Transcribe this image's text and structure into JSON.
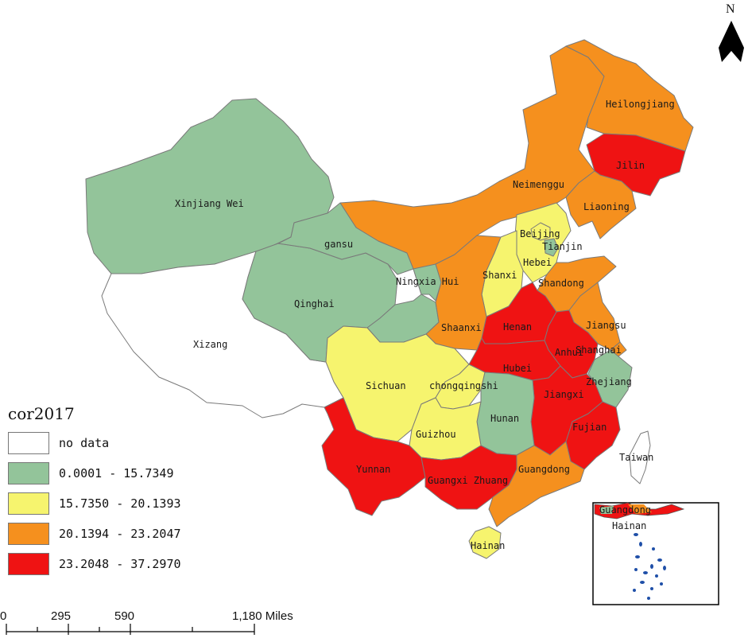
{
  "map": {
    "legend": {
      "title": "cor2017",
      "classes": [
        {
          "label": "no data",
          "color": "#ffffff"
        },
        {
          "label": "0.0001 - 15.7349",
          "color": "#93c49a"
        },
        {
          "label": "15.7350 - 20.1393",
          "color": "#f6f46e"
        },
        {
          "label": "20.1394 - 23.2047",
          "color": "#f5901e"
        },
        {
          "label": "23.2048 - 37.2970",
          "color": "#ef1313"
        }
      ]
    },
    "north_arrow": {
      "label": "N"
    },
    "scale_bar": {
      "ticks": [
        "0",
        "295",
        "590",
        "1,180 Miles"
      ]
    },
    "provinces": [
      {
        "name": "Xinjiang Wei",
        "class": 1
      },
      {
        "name": "Xizang",
        "class": 0
      },
      {
        "name": "Qinghai",
        "class": 1
      },
      {
        "name": "gansu",
        "class": 1
      },
      {
        "name": "Neimenggu",
        "class": 3
      },
      {
        "name": "Heilongjiang",
        "class": 3
      },
      {
        "name": "Jilin",
        "class": 4
      },
      {
        "name": "Liaoning",
        "class": 3
      },
      {
        "name": "Beijing",
        "class": 2
      },
      {
        "name": "Tianjin",
        "class": 1
      },
      {
        "name": "Hebei",
        "class": 2
      },
      {
        "name": "Shanxi",
        "class": 2
      },
      {
        "name": "Ningxia Hui",
        "class": 1
      },
      {
        "name": "Shaanxi",
        "class": 3
      },
      {
        "name": "Shandong",
        "class": 3
      },
      {
        "name": "Henan",
        "class": 4
      },
      {
        "name": "Jiangsu",
        "class": 3
      },
      {
        "name": "Shanghai",
        "class": 3
      },
      {
        "name": "Anhui",
        "class": 4
      },
      {
        "name": "Hubei",
        "class": 4
      },
      {
        "name": "Sichuan",
        "class": 2
      },
      {
        "name": "chongqingshi",
        "class": 2
      },
      {
        "name": "Zhejiang",
        "class": 1
      },
      {
        "name": "Jiangxi",
        "class": 4
      },
      {
        "name": "Hunan",
        "class": 1
      },
      {
        "name": "Guizhou",
        "class": 2
      },
      {
        "name": "Fujian",
        "class": 4
      },
      {
        "name": "Taiwan",
        "class": 0
      },
      {
        "name": "Yunnan",
        "class": 4
      },
      {
        "name": "Guangxi Zhuang",
        "class": 4
      },
      {
        "name": "Guangdong",
        "class": 3
      },
      {
        "name": "Hainan",
        "class": 2
      }
    ],
    "inset": {
      "labels": [
        "Guangdong",
        "Hainan"
      ]
    }
  }
}
